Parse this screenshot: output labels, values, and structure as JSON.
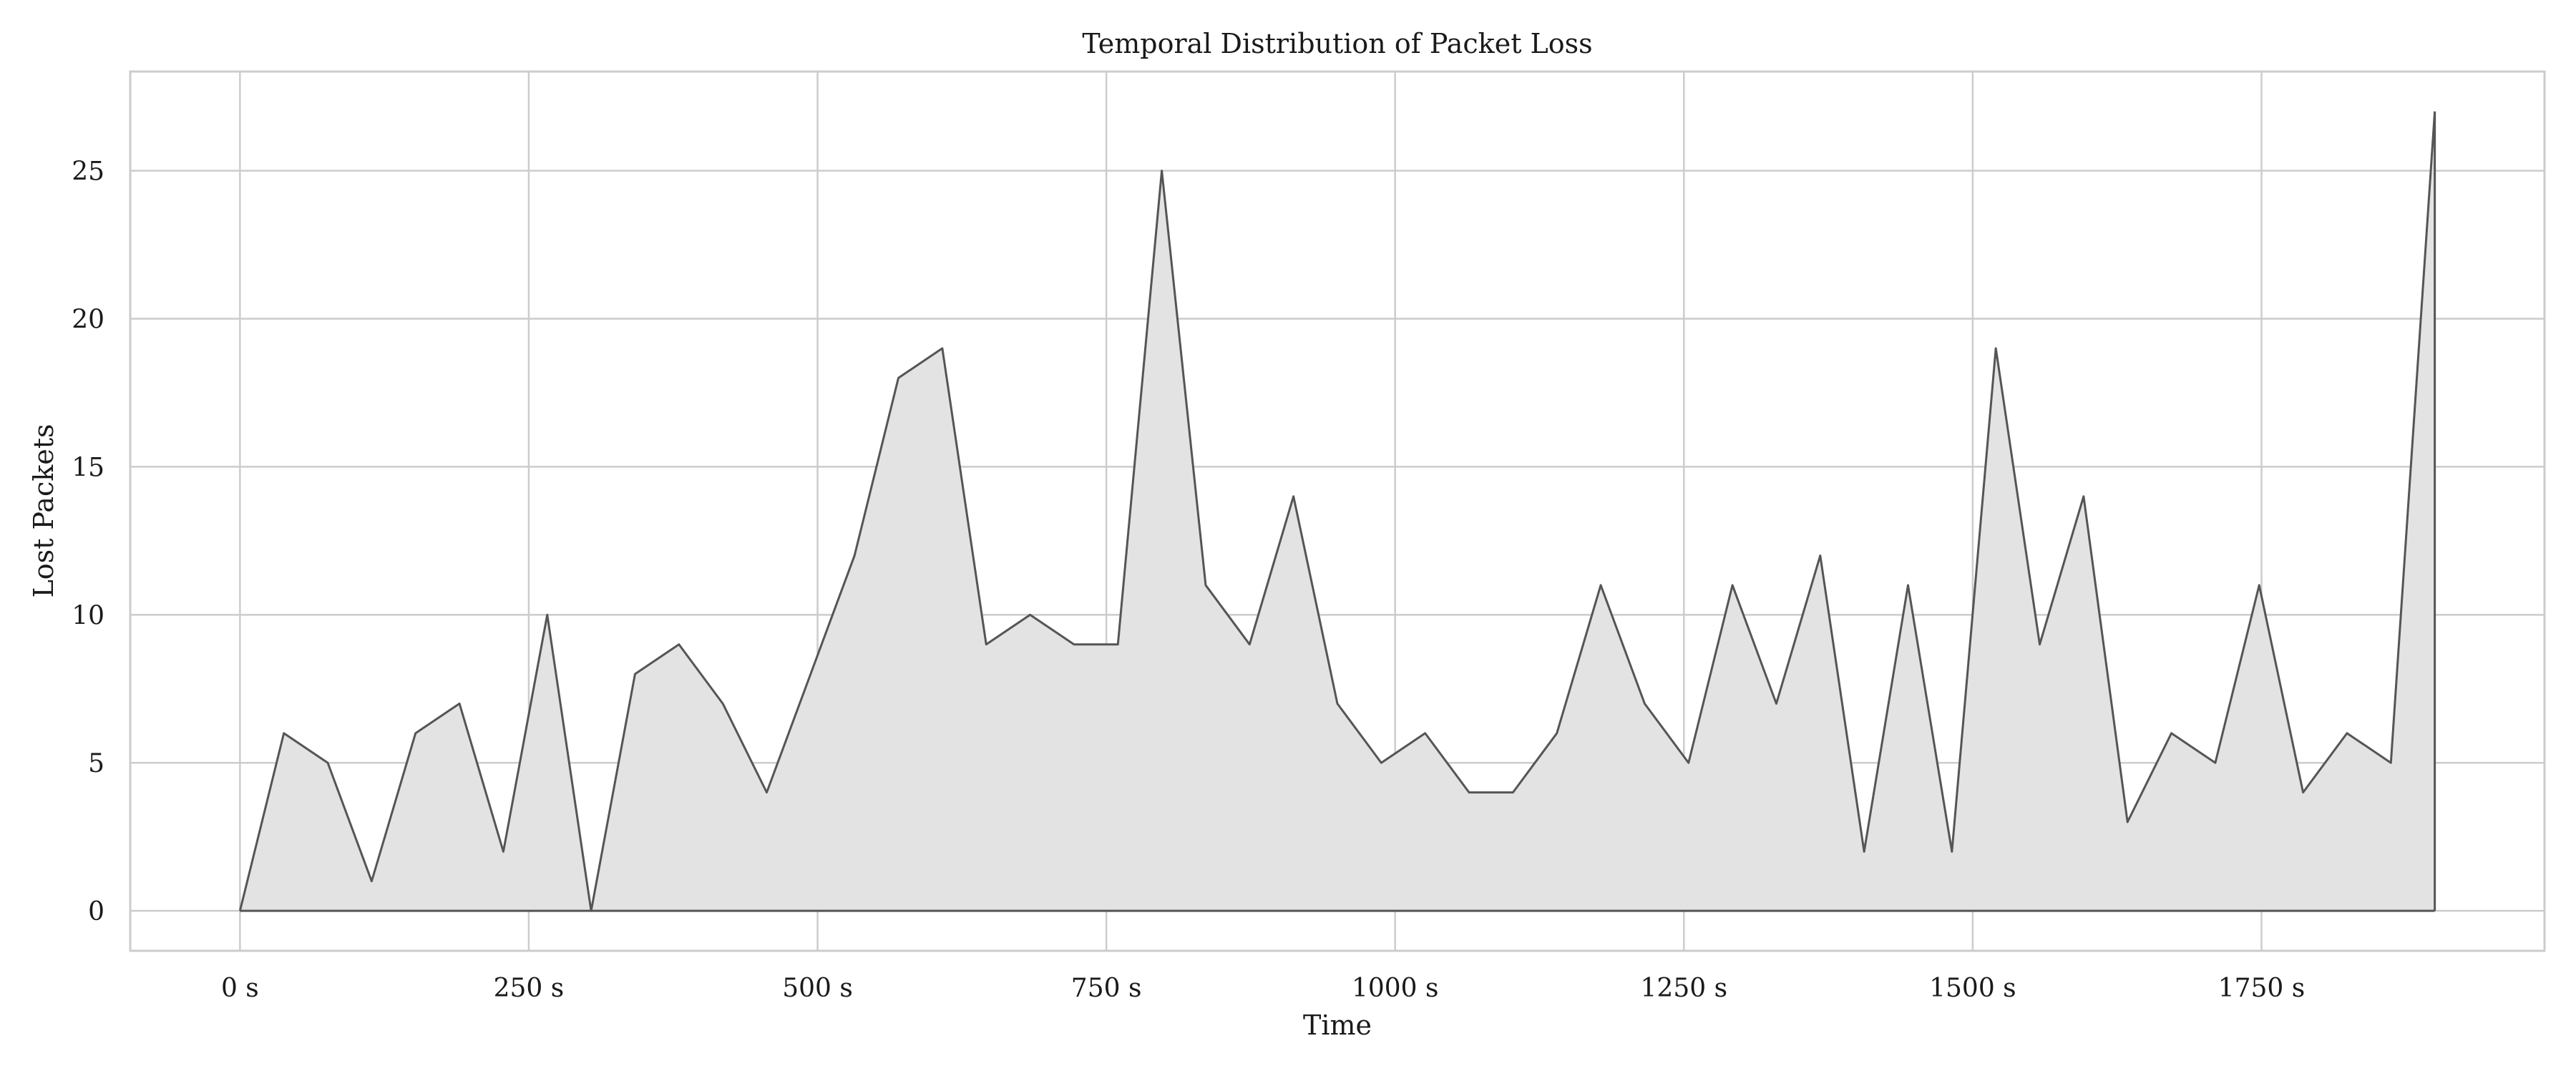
{
  "chart_data": {
    "type": "area",
    "title": "Temporal Distribution of Packet Loss",
    "xlabel": "Time",
    "ylabel": "Lost Packets",
    "x_unit": "s",
    "xlim": [
      -95,
      1995
    ],
    "ylim": [
      -1.35,
      28.35
    ],
    "x_ticks": [
      0,
      250,
      500,
      750,
      1000,
      1250,
      1500,
      1750
    ],
    "x_tick_labels": [
      "0 s",
      "250 s",
      "500 s",
      "750 s",
      "1000 s",
      "1250 s",
      "1500 s",
      "1750 s"
    ],
    "y_ticks": [
      0,
      5,
      10,
      15,
      20,
      25
    ],
    "y_tick_labels": [
      "0",
      "5",
      "10",
      "15",
      "20",
      "25"
    ],
    "grid": true,
    "legend": "none",
    "colors": {
      "line": "#555555",
      "fill": "#e3e3e3",
      "grid": "#cccccc",
      "frame": "#cccccc"
    },
    "x": [
      0,
      38,
      76,
      114,
      152,
      190,
      228,
      266,
      304,
      342,
      380,
      418,
      456,
      494,
      532,
      570,
      608,
      646,
      684,
      722,
      760,
      798,
      836,
      874,
      912,
      950,
      988,
      1026,
      1064,
      1102,
      1140,
      1178,
      1216,
      1254,
      1292,
      1330,
      1368,
      1406,
      1444,
      1482,
      1520,
      1558,
      1596,
      1634,
      1672,
      1710,
      1748,
      1786,
      1824,
      1862,
      1900
    ],
    "series": [
      {
        "values": [
          0,
          6,
          5,
          1,
          6,
          7,
          2,
          10,
          0,
          8,
          9,
          7,
          4,
          8,
          12,
          18,
          19,
          9,
          10,
          9,
          9,
          25,
          11,
          9,
          14,
          7,
          5,
          6,
          4,
          4,
          6,
          11,
          7,
          5,
          11,
          7,
          12,
          2,
          11,
          2,
          19,
          9,
          14,
          3,
          6,
          5,
          11,
          4,
          6,
          5,
          27
        ]
      }
    ]
  }
}
